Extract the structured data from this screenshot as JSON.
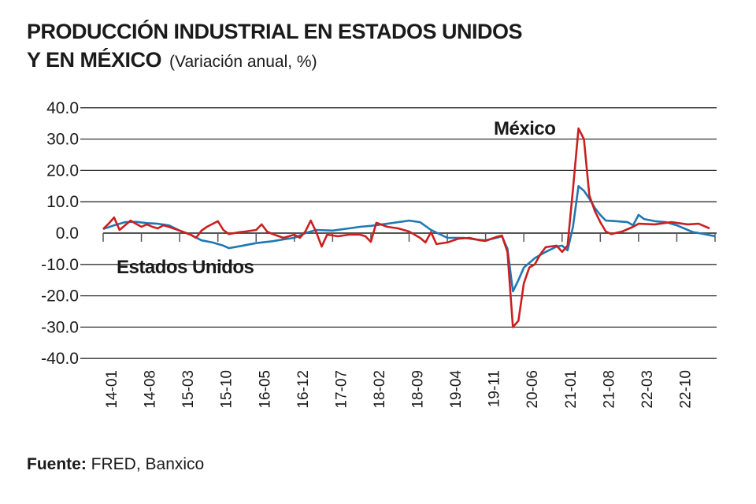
{
  "title_line1": "PRODUCCIÓN INDUSTRIAL EN ESTADOS UNIDOS",
  "title_line2": "Y EN MÉXICO",
  "subtitle": "(Variación anual, %)",
  "source_label": "Fuente:",
  "source_text": "FRED, Banxico",
  "chart_data": {
    "type": "line",
    "title": "PRODUCCIÓN INDUSTRIAL EN ESTADOS UNIDOS Y EN MÉXICO",
    "ylabel": "Variación anual, %",
    "ylim": [
      -40,
      40
    ],
    "yticks": [
      "40.0",
      "30.0",
      "20.0",
      "10.0",
      "0.0",
      "-10.0",
      "-20.0",
      "-30.0",
      "-40.0"
    ],
    "ytick_values": [
      40,
      30,
      20,
      10,
      0,
      -10,
      -20,
      -30,
      -40
    ],
    "xticks": [
      "14-01",
      "14-08",
      "15-03",
      "15-10",
      "16-05",
      "16-12",
      "17-07",
      "18-02",
      "18-09",
      "19-04",
      "19-11",
      "20-06",
      "21-01",
      "21-08",
      "22-03",
      "22-10"
    ],
    "x_start": "2014-01",
    "x_end": "2023-05",
    "grid": true,
    "series": [
      {
        "name": "Estados Unidos",
        "color": "#1f78b4",
        "points": [
          [
            "2014-01",
            1.3
          ],
          [
            "2014-03",
            2.5
          ],
          [
            "2014-05",
            3.5
          ],
          [
            "2014-07",
            3.6
          ],
          [
            "2014-09",
            3.2
          ],
          [
            "2014-11",
            3.0
          ],
          [
            "2015-01",
            2.5
          ],
          [
            "2015-03",
            0.8
          ],
          [
            "2015-05",
            -0.5
          ],
          [
            "2015-07",
            -2.3
          ],
          [
            "2015-09",
            -3.0
          ],
          [
            "2015-11",
            -4.0
          ],
          [
            "2015-12",
            -4.8
          ],
          [
            "2016-02",
            -4.2
          ],
          [
            "2016-05",
            -3.2
          ],
          [
            "2016-08",
            -2.6
          ],
          [
            "2016-10",
            -2.0
          ],
          [
            "2016-12",
            -1.5
          ],
          [
            "2017-02",
            0.0
          ],
          [
            "2017-04",
            1.0
          ],
          [
            "2017-07",
            0.8
          ],
          [
            "2017-10",
            1.5
          ],
          [
            "2017-12",
            2.0
          ],
          [
            "2018-02",
            2.3
          ],
          [
            "2018-05",
            3.0
          ],
          [
            "2018-07",
            3.5
          ],
          [
            "2018-09",
            4.0
          ],
          [
            "2018-11",
            3.5
          ],
          [
            "2019-01",
            1.0
          ],
          [
            "2019-04",
            -1.5
          ],
          [
            "2019-07",
            -1.5
          ],
          [
            "2019-09",
            -2.0
          ],
          [
            "2019-11",
            -2.3
          ],
          [
            "2020-01",
            -1.5
          ],
          [
            "2020-02",
            -1.0
          ],
          [
            "2020-03",
            -5.0
          ],
          [
            "2020-04",
            -18.6
          ],
          [
            "2020-05",
            -15.0
          ],
          [
            "2020-06",
            -11.0
          ],
          [
            "2020-08",
            -8.0
          ],
          [
            "2020-10",
            -6.0
          ],
          [
            "2020-12",
            -4.3
          ],
          [
            "2021-01",
            -4.0
          ],
          [
            "2021-02",
            -5.5
          ],
          [
            "2021-03",
            2.0
          ],
          [
            "2021-04",
            15.0
          ],
          [
            "2021-05",
            13.5
          ],
          [
            "2021-06",
            11.0
          ],
          [
            "2021-07",
            8.0
          ],
          [
            "2021-08",
            5.8
          ],
          [
            "2021-09",
            4.0
          ],
          [
            "2021-11",
            3.8
          ],
          [
            "2022-01",
            3.5
          ],
          [
            "2022-02",
            2.5
          ],
          [
            "2022-03",
            5.8
          ],
          [
            "2022-04",
            4.5
          ],
          [
            "2022-06",
            3.8
          ],
          [
            "2022-08",
            3.5
          ],
          [
            "2022-10",
            2.5
          ],
          [
            "2022-12",
            1.0
          ],
          [
            "2023-01",
            0.3
          ],
          [
            "2023-03",
            -0.3
          ],
          [
            "2023-05",
            -1.0
          ]
        ]
      },
      {
        "name": "México",
        "color": "#cc1f1f",
        "points": [
          [
            "2014-01",
            1.3
          ],
          [
            "2014-02",
            3.0
          ],
          [
            "2014-03",
            5.0
          ],
          [
            "2014-04",
            1.0
          ],
          [
            "2014-05",
            2.5
          ],
          [
            "2014-06",
            4.0
          ],
          [
            "2014-07",
            3.0
          ],
          [
            "2014-08",
            2.0
          ],
          [
            "2014-09",
            2.8
          ],
          [
            "2014-10",
            2.0
          ],
          [
            "2014-11",
            1.5
          ],
          [
            "2014-12",
            2.5
          ],
          [
            "2015-01",
            2.0
          ],
          [
            "2015-03",
            0.8
          ],
          [
            "2015-05",
            -0.5
          ],
          [
            "2015-06",
            -1.5
          ],
          [
            "2015-07",
            0.8
          ],
          [
            "2015-08",
            2.0
          ],
          [
            "2015-10",
            3.8
          ],
          [
            "2015-11",
            1.0
          ],
          [
            "2015-12",
            -0.3
          ],
          [
            "2016-02",
            0.3
          ],
          [
            "2016-03",
            0.5
          ],
          [
            "2016-05",
            1.0
          ],
          [
            "2016-06",
            2.8
          ],
          [
            "2016-07",
            0.5
          ],
          [
            "2016-08",
            -0.3
          ],
          [
            "2016-10",
            -1.5
          ],
          [
            "2016-12",
            -0.5
          ],
          [
            "2017-01",
            -1.5
          ],
          [
            "2017-02",
            0.5
          ],
          [
            "2017-03",
            4.0
          ],
          [
            "2017-04",
            0.3
          ],
          [
            "2017-05",
            -4.3
          ],
          [
            "2017-06",
            -0.5
          ],
          [
            "2017-08",
            -1.0
          ],
          [
            "2017-10",
            -0.5
          ],
          [
            "2017-12",
            -0.5
          ],
          [
            "2018-01",
            -1.0
          ],
          [
            "2018-02",
            -2.8
          ],
          [
            "2018-03",
            3.3
          ],
          [
            "2018-05",
            2.0
          ],
          [
            "2018-07",
            1.5
          ],
          [
            "2018-09",
            0.5
          ],
          [
            "2018-11",
            -1.5
          ],
          [
            "2018-12",
            -3.0
          ],
          [
            "2019-01",
            0.3
          ],
          [
            "2019-02",
            -3.5
          ],
          [
            "2019-04",
            -3.0
          ],
          [
            "2019-06",
            -1.8
          ],
          [
            "2019-08",
            -1.5
          ],
          [
            "2019-10",
            -2.3
          ],
          [
            "2019-11",
            -2.5
          ],
          [
            "2020-01",
            -1.2
          ],
          [
            "2020-02",
            -0.8
          ],
          [
            "2020-03",
            -6.0
          ],
          [
            "2020-04",
            -30.0
          ],
          [
            "2020-05",
            -28.0
          ],
          [
            "2020-06",
            -16.0
          ],
          [
            "2020-07",
            -11.0
          ],
          [
            "2020-08",
            -10.0
          ],
          [
            "2020-09",
            -6.8
          ],
          [
            "2020-10",
            -4.5
          ],
          [
            "2020-12",
            -4.0
          ],
          [
            "2021-01",
            -6.0
          ],
          [
            "2021-02",
            -4.0
          ],
          [
            "2021-03",
            14.0
          ],
          [
            "2021-04",
            33.4
          ],
          [
            "2021-05",
            30.0
          ],
          [
            "2021-06",
            12.0
          ],
          [
            "2021-07",
            7.0
          ],
          [
            "2021-08",
            3.5
          ],
          [
            "2021-09",
            0.5
          ],
          [
            "2021-10",
            -0.3
          ],
          [
            "2021-12",
            0.5
          ],
          [
            "2022-02",
            2.0
          ],
          [
            "2022-03",
            3.0
          ],
          [
            "2022-06",
            2.8
          ],
          [
            "2022-09",
            3.5
          ],
          [
            "2022-12",
            2.8
          ],
          [
            "2023-02",
            3.0
          ],
          [
            "2023-04",
            1.5
          ]
        ]
      }
    ],
    "annotations": [
      {
        "text": "México",
        "series": "México"
      },
      {
        "text": "Estados Unidos",
        "series": "Estados Unidos"
      }
    ]
  }
}
